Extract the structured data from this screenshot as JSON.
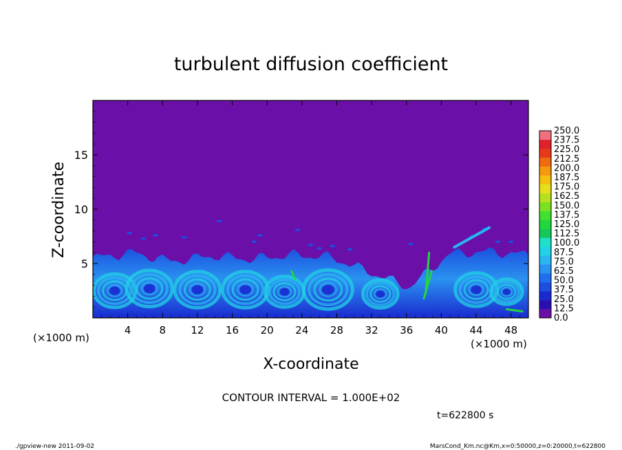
{
  "chart_data": {
    "type": "heatmap",
    "title": "turbulent diffusion coefficient",
    "xlabel": "X-coordinate",
    "ylabel": "Z-coordinate",
    "x_unit": "(×1000 m)",
    "z_unit": "(×1000 m)",
    "xlim": [
      0,
      50
    ],
    "ylim": [
      0,
      20
    ],
    "x_ticks": [
      "4",
      "8",
      "12",
      "16",
      "20",
      "24",
      "28",
      "32",
      "36",
      "40",
      "44",
      "48"
    ],
    "y_ticks": [
      "5",
      "10",
      "15"
    ],
    "x_tick_values": [
      4,
      8,
      12,
      16,
      20,
      24,
      28,
      32,
      36,
      40,
      44,
      48
    ],
    "y_tick_values": [
      5,
      10,
      15
    ],
    "colorbar": {
      "levels": [
        "0.0",
        "12.5",
        "25.0",
        "37.5",
        "50.0",
        "62.5",
        "75.0",
        "87.5",
        "100.0",
        "112.5",
        "125.0",
        "137.5",
        "150.0",
        "162.5",
        "175.0",
        "187.5",
        "200.0",
        "212.5",
        "225.0",
        "237.5",
        "250.0"
      ],
      "colors": [
        "#6a0fa8",
        "#2a0fb0",
        "#1a2ad0",
        "#1c4ee0",
        "#1f6ef0",
        "#2a92f0",
        "#29b6f0",
        "#22d2e6",
        "#1fe0c8",
        "#16c85a",
        "#22d640",
        "#40e030",
        "#7ce020",
        "#b8e020",
        "#e6e01a",
        "#f5c010",
        "#f59a10",
        "#f06a10",
        "#e83a18",
        "#e0202a",
        "#f07080"
      ]
    },
    "contour_interval_text": "CONTOUR INTERVAL = 1.000E+02",
    "time_text": "t=622800 s",
    "boundary_layer": {
      "description_values_km": {
        "ground_layer_top": [
          5.5,
          6.0,
          5.2,
          5.7,
          5.4,
          5.8,
          5.6,
          4.2,
          2.8,
          5.9,
          6.1,
          5.8
        ]
      }
    }
  },
  "footer": {
    "left": "./gpview-new  2011-09-02",
    "right": "MarsCond_Km.nc@Km,x=0:50000,z=0:20000,t=622800"
  }
}
